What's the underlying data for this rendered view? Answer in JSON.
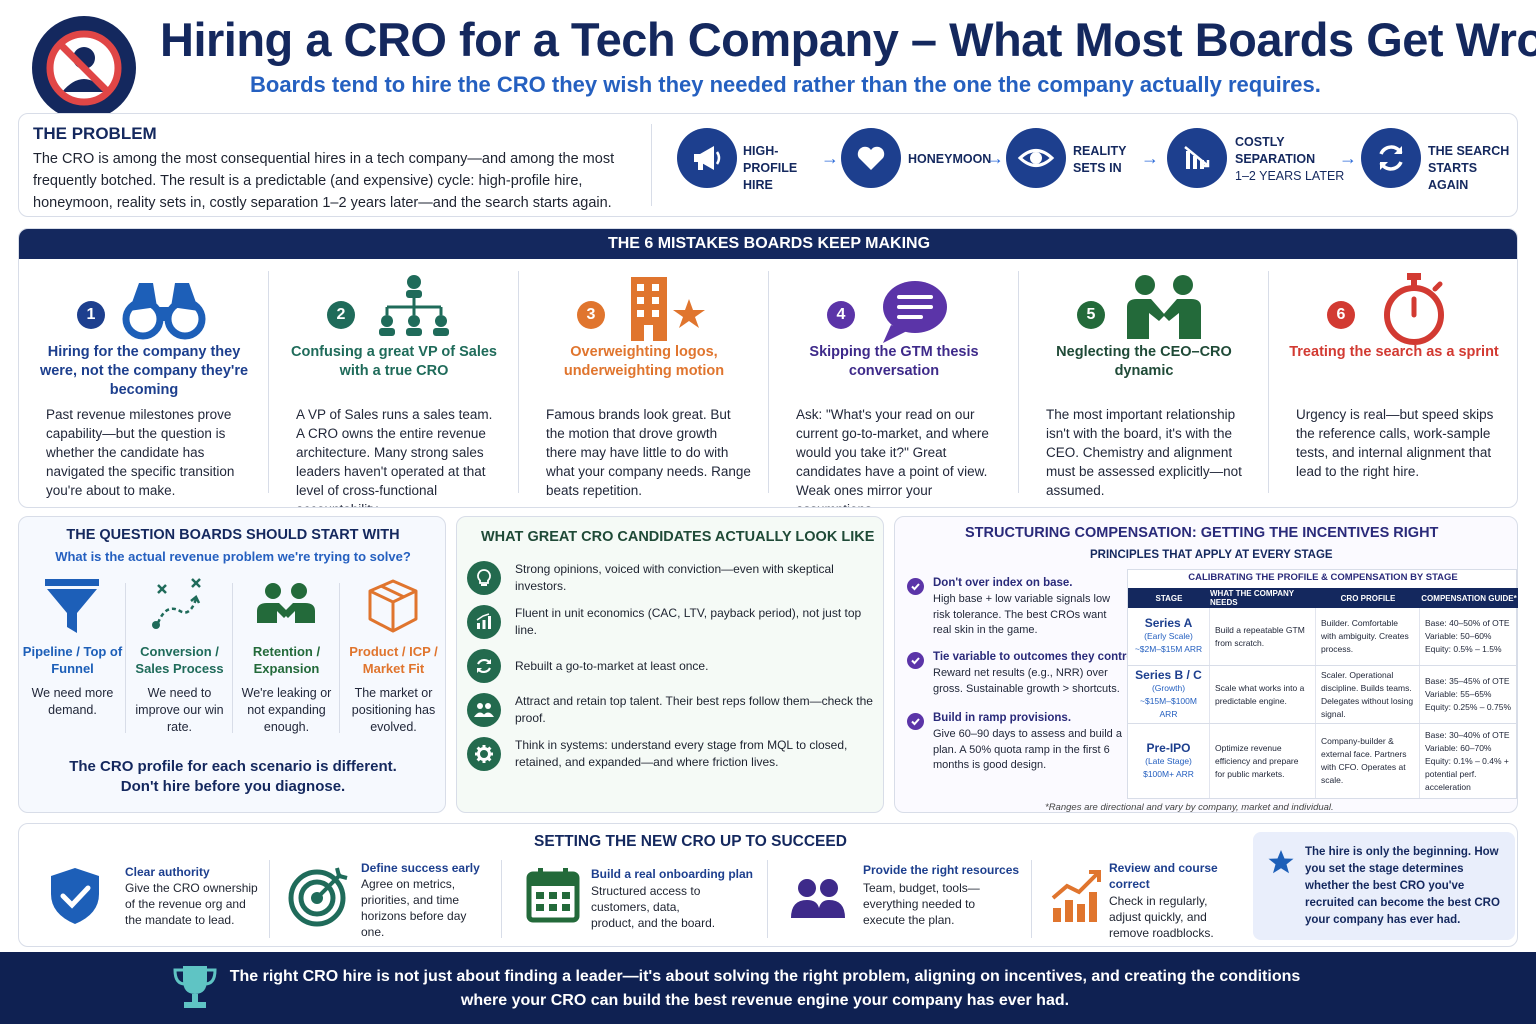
{
  "header": {
    "title": "Hiring a CRO for a Tech Company – What Most Boards Get Wrong",
    "subtitle": "Boards tend to hire the CRO they wish they needed rather than the one the company actually requires.",
    "icon": "no-person-icon"
  },
  "problem": {
    "heading": "THE PROBLEM",
    "body": "The CRO is among the most consequential hires in a tech company—and among the most frequently botched. The result is a predictable (and expensive) cycle: high-profile hire, honeymoon, reality sets in, costly separation 1–2 years later—and the search starts again.",
    "cycle": [
      {
        "label": "HIGH-PROFILE HIRE",
        "sub": "",
        "icon": "megaphone-icon"
      },
      {
        "label": "HONEYMOON",
        "sub": "",
        "icon": "heart-icon"
      },
      {
        "label": "REALITY SETS IN",
        "sub": "",
        "icon": "eye-icon"
      },
      {
        "label": "COSTLY SEPARATION",
        "sub": "1–2 YEARS LATER",
        "icon": "declining-chart-icon"
      },
      {
        "label": "THE SEARCH STARTS AGAIN",
        "sub": "",
        "icon": "refresh-icon"
      }
    ]
  },
  "mistakes": {
    "heading": "THE 6 MISTAKES BOARDS KEEP MAKING",
    "items": [
      {
        "num": "1",
        "title": "Hiring for the company they were, not the company they're becoming",
        "body": "Past revenue milestones prove capability—but the question is whether the candidate has navigated the specific transition you're about to make.",
        "color": "#1d3f8e",
        "icon": "binoculars-icon"
      },
      {
        "num": "2",
        "title": "Confusing a great VP of Sales with a true CRO",
        "body": "A VP of Sales runs a sales team. A CRO owns the entire revenue architecture. Many strong sales leaders haven't operated at that level of cross-functional accountability.",
        "color": "#1f6b5a",
        "icon": "org-chart-icon"
      },
      {
        "num": "3",
        "title": "Overweighting logos, underweighting motion",
        "body": "Famous brands look great. But the motion that drove growth there may have little to do with what your company needs. Range beats repetition.",
        "color": "#e0752e",
        "icon": "building-star-icon"
      },
      {
        "num": "4",
        "title": "Skipping the GTM thesis conversation",
        "body": "Ask: \"What's your read on our current go-to-market, and where would you take it?\" Great candidates have a point of view. Weak ones mirror your assumptions.",
        "color": "#5b34a8",
        "icon": "chat-bubble-icon"
      },
      {
        "num": "5",
        "title": "Neglecting the CEO–CRO dynamic",
        "body": "The most important relationship isn't with the board, it's with the CEO. Chemistry and alignment must be assessed explicitly—not assumed.",
        "color": "#236a3a",
        "icon": "handshake-icon"
      },
      {
        "num": "6",
        "title": "Treating the search as a sprint",
        "body": "Urgency is real—but speed skips the reference calls, work-sample tests, and internal alignment that lead to the right hire.",
        "color": "#d23a32",
        "icon": "stopwatch-icon"
      }
    ]
  },
  "question": {
    "title": "THE QUESTION BOARDS SHOULD START WITH",
    "subtitle": "What is the actual revenue problem we're trying to solve?",
    "items": [
      {
        "name": "Pipeline / Top of Funnel",
        "desc": "We need more demand.",
        "color": "#1d5fb8",
        "icon": "funnel-icon"
      },
      {
        "name": "Conversion / Sales Process",
        "desc": "We need to improve our win rate.",
        "color": "#1f6b5a",
        "icon": "play-diagram-icon"
      },
      {
        "name": "Retention / Expansion",
        "desc": "We're leaking or not expanding enough.",
        "color": "#236a3a",
        "icon": "people-icon"
      },
      {
        "name": "Product / ICP / Market Fit",
        "desc": "The market or positioning has evolved.",
        "color": "#e0752e",
        "icon": "box-icon"
      }
    ],
    "footer_line1": "The CRO profile for each scenario is different.",
    "footer_line2": "Don't hire before you diagnose."
  },
  "candidates": {
    "title": "WHAT GREAT CRO CANDIDATES ACTUALLY LOOK LIKE",
    "items": [
      {
        "text": "Strong opinions, voiced with conviction—even with skeptical investors.",
        "icon": "lightbulb-icon"
      },
      {
        "text": "Fluent in unit economics (CAC, LTV, payback period), not just top line.",
        "icon": "bar-chart-icon"
      },
      {
        "text": "Rebuilt a go-to-market at least once.",
        "icon": "refresh-icon"
      },
      {
        "text": "Attract and retain top talent. Their best reps follow them—check the proof.",
        "icon": "team-icon"
      },
      {
        "text": "Think in systems: understand every stage from MQL to closed, retained, and expanded—and where friction lives.",
        "icon": "gear-icon"
      }
    ]
  },
  "compensation": {
    "title": "STRUCTURING COMPENSATION: GETTING THE INCENTIVES RIGHT",
    "subtitle": "PRINCIPLES THAT APPLY AT EVERY STAGE",
    "principles": [
      {
        "heading": "Don't over index on base.",
        "body": "High base + low variable signals low risk tolerance. The best CROs want real skin in the game."
      },
      {
        "heading": "Tie variable to outcomes they control.",
        "body": "Reward net results (e.g., NRR) over gross. Sustainable growth > shortcuts."
      },
      {
        "heading": "Build in ramp provisions.",
        "body": "Give 60–90 days to assess and build a plan. A 50% quota ramp in the first 6 months is good design."
      }
    ],
    "table": {
      "caption": "CALIBRATING THE PROFILE & COMPENSATION BY STAGE",
      "headers": [
        "STAGE",
        "WHAT THE COMPANY NEEDS",
        "CRO PROFILE",
        "COMPENSATION GUIDE*"
      ],
      "rows": [
        {
          "stage": "Series A",
          "stage_sub": "(Early Scale)",
          "arr": "~$2M–$15M ARR",
          "needs": "Build a repeatable GTM from scratch.",
          "profile": "Builder. Comfortable with ambiguity. Creates process.",
          "comp": [
            "Base: 40–50% of OTE",
            "Variable: 50–60%",
            "Equity: 0.5% – 1.5%"
          ]
        },
        {
          "stage": "Series B / C",
          "stage_sub": "(Growth)",
          "arr": "~$15M–$100M ARR",
          "needs": "Scale what works into a predictable engine.",
          "profile": "Scaler. Operational discipline. Builds teams. Delegates without losing signal.",
          "comp": [
            "Base: 35–45% of OTE",
            "Variable: 55–65%",
            "Equity: 0.25% – 0.75%"
          ]
        },
        {
          "stage": "Pre-IPO",
          "stage_sub": "(Late Stage)",
          "arr": "$100M+ ARR",
          "needs": "Optimize revenue efficiency and prepare for public markets.",
          "profile": "Company-builder & external face. Partners with CFO. Operates at scale.",
          "comp": [
            "Base: 30–40% of OTE",
            "Variable: 60–70%",
            "Equity: 0.1% – 0.4% + potential perf. acceleration"
          ]
        }
      ]
    },
    "note": "*Ranges are directional and vary by company, market and individual."
  },
  "setup": {
    "title": "SETTING THE NEW CRO UP TO SUCCEED",
    "items": [
      {
        "heading": "Clear authority",
        "body": "Give the CRO ownership of the revenue org and the mandate to lead.",
        "icon": "shield-check-icon"
      },
      {
        "heading": "Define success early",
        "body": "Agree on metrics, priorities, and time horizons before day one.",
        "icon": "target-icon"
      },
      {
        "heading": "Build a real onboarding plan",
        "body": "Structured access to customers, data, product, and the board.",
        "icon": "calendar-icon"
      },
      {
        "heading": "Provide the right resources",
        "body": "Team, budget, tools—everything needed to execute the plan.",
        "icon": "people-icon"
      },
      {
        "heading": "Review and course correct",
        "body": "Check in regularly, adjust quickly, and remove roadblocks.",
        "icon": "growth-chart-icon"
      }
    ],
    "callout": "The hire is only the beginning. How you set the stage determines whether the best CRO you've recruited can become the best CRO your company has ever had."
  },
  "footer": {
    "line1": "The right CRO hire is not just about finding a leader—it's about solving the right problem, aligning on incentives, and creating the conditions",
    "line2": "where your CRO can build the best revenue engine your company has ever had.",
    "icon": "trophy-icon"
  }
}
